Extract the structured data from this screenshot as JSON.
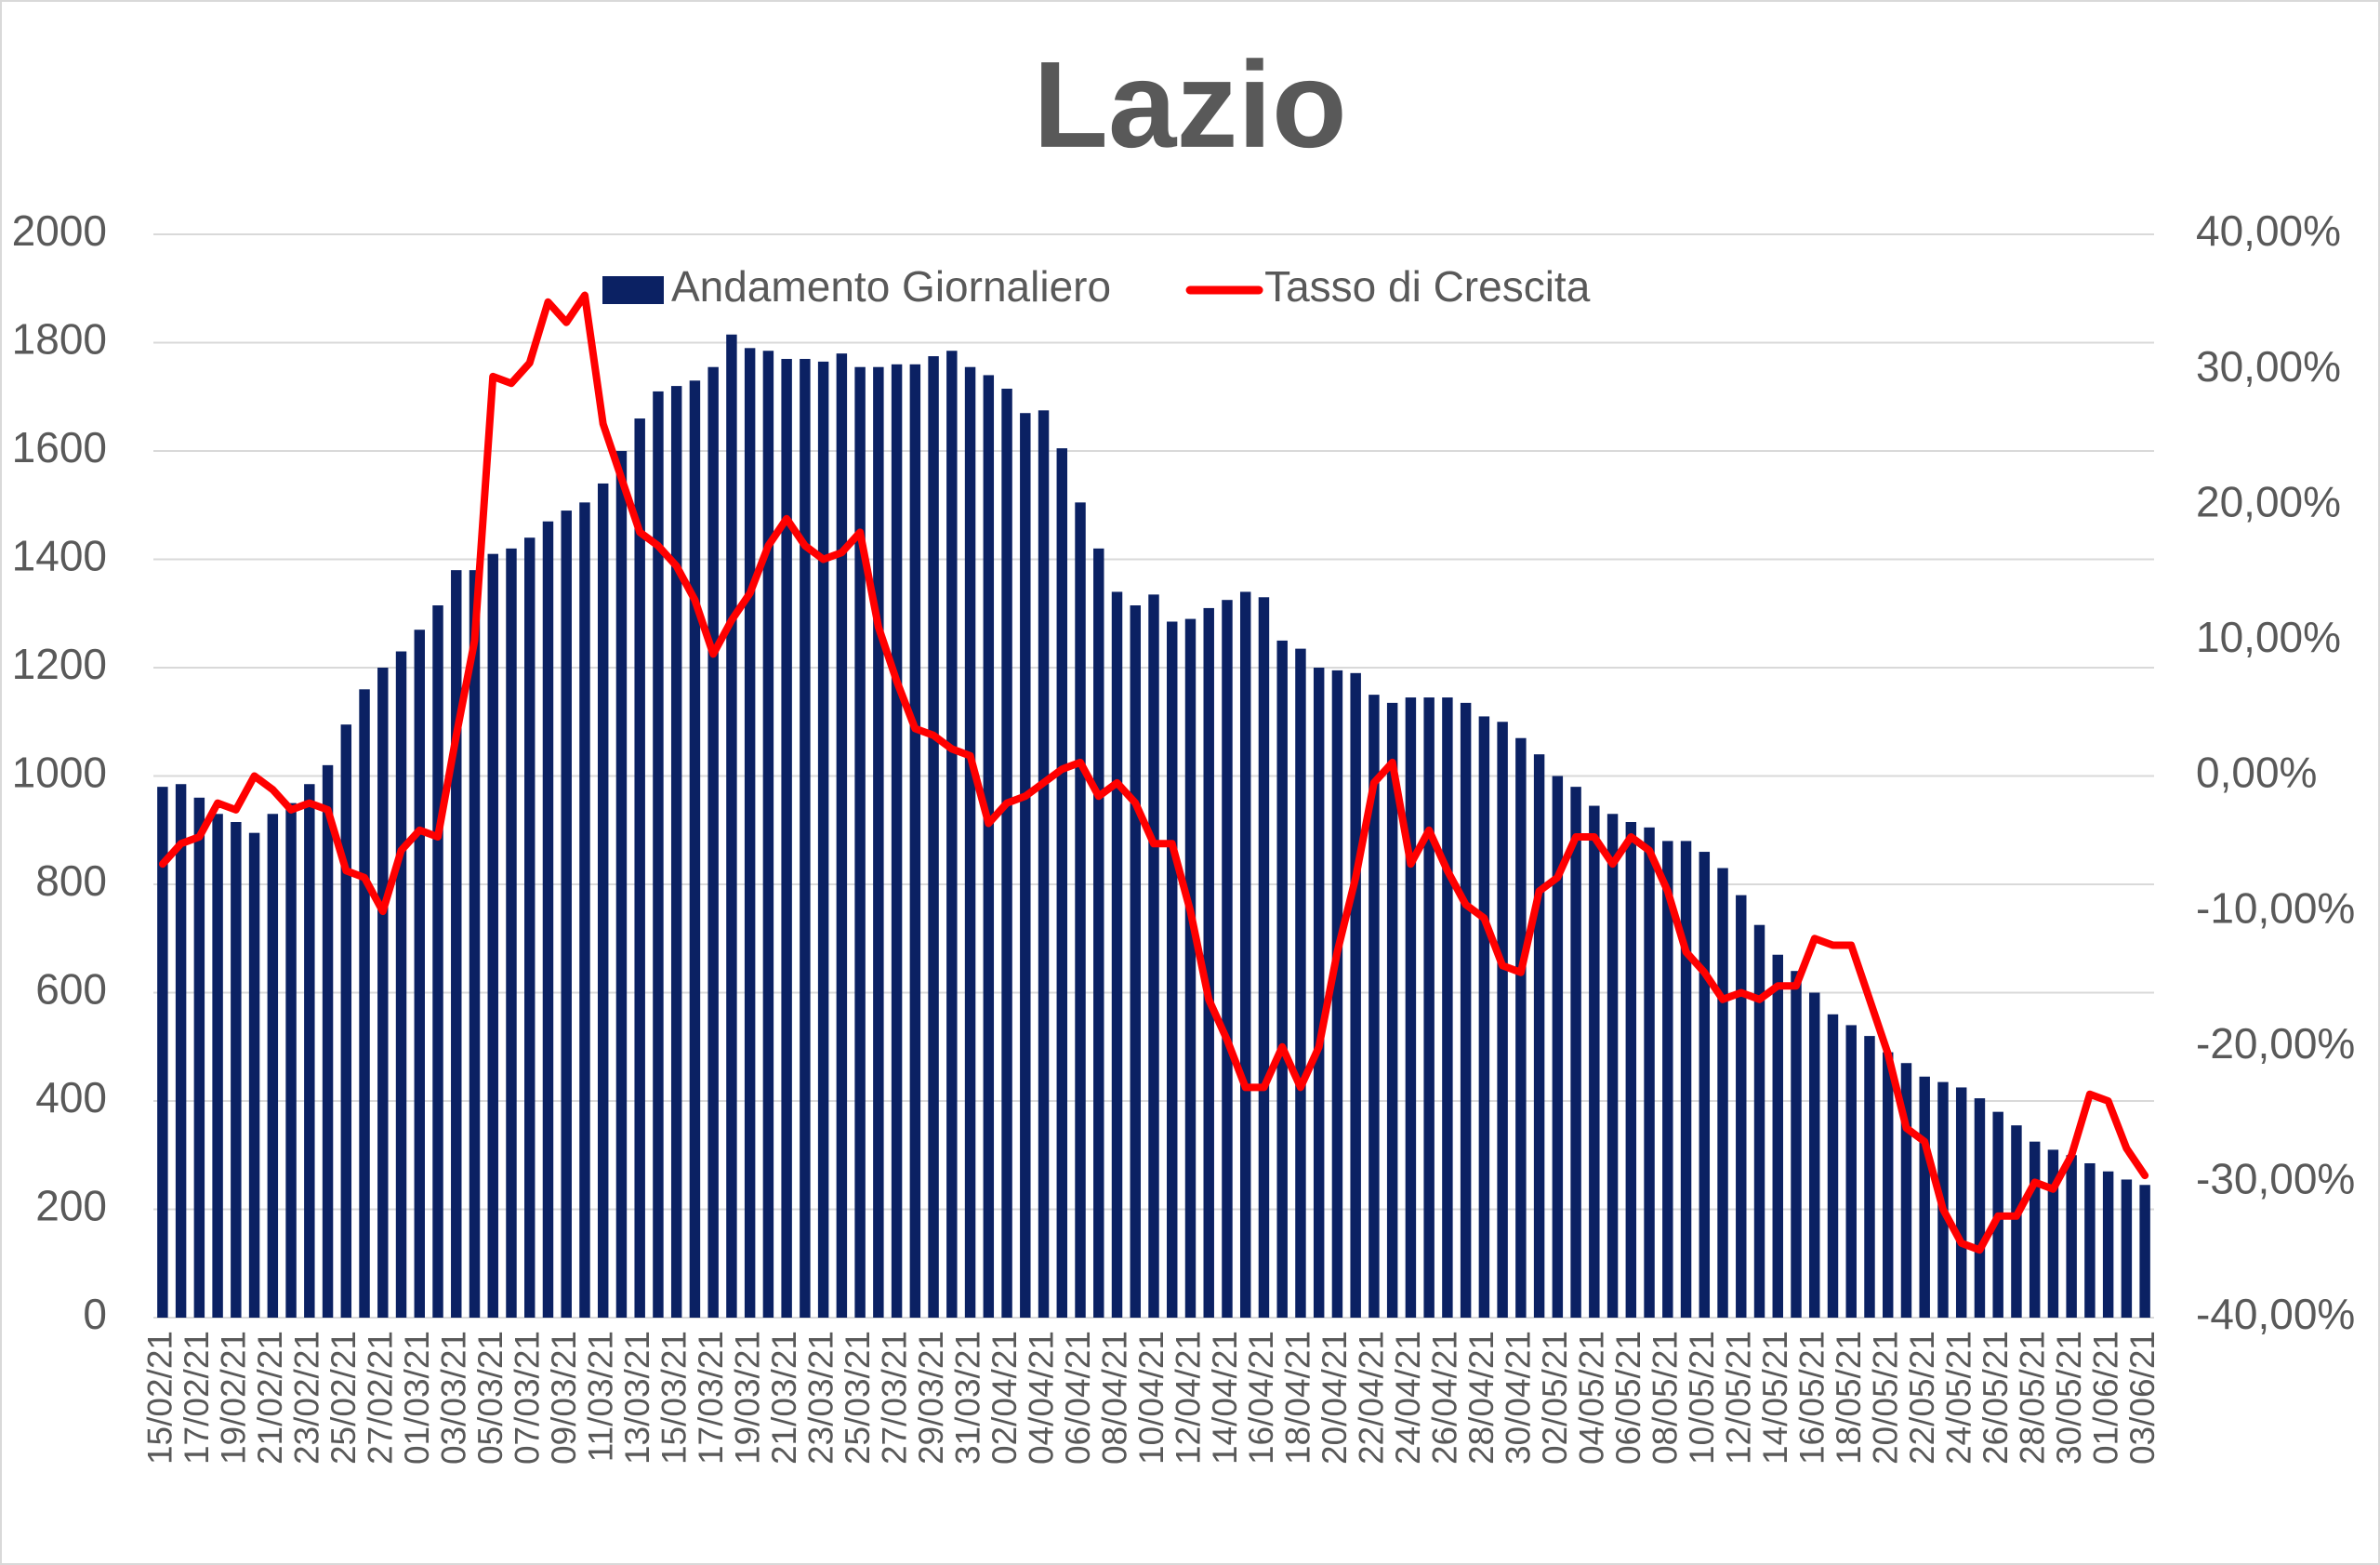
{
  "chart_data": {
    "type": "bar_line",
    "title": "Lazio",
    "categories": [
      "15/02/21",
      null,
      "17/02/21",
      null,
      "19/02/21",
      null,
      "21/02/21",
      null,
      "23/02/21",
      null,
      "25/02/21",
      null,
      "27/02/21",
      null,
      "01/03/21",
      null,
      "03/03/21",
      null,
      "05/03/21",
      null,
      "07/03/21",
      null,
      "09/03/21",
      null,
      "11/03/21",
      null,
      "13/03/21",
      null,
      "15/03/21",
      null,
      "17/03/21",
      null,
      "19/03/21",
      null,
      "21/03/21",
      null,
      "23/03/21",
      null,
      "25/03/21",
      null,
      "27/03/21",
      null,
      "29/03/21",
      null,
      "31/03/21",
      null,
      "02/04/21",
      null,
      "04/04/21",
      null,
      "06/04/21",
      null,
      "08/04/21",
      null,
      "10/04/21",
      null,
      "12/04/21",
      null,
      "14/04/21",
      null,
      "16/04/21",
      null,
      "18/04/21",
      null,
      "20/04/21",
      null,
      "22/04/21",
      null,
      "24/04/21",
      null,
      "26/04/21",
      null,
      "28/04/21",
      null,
      "30/04/21",
      null,
      "02/05/21",
      null,
      "04/05/21",
      null,
      "06/05/21",
      null,
      "08/05/21",
      null,
      "10/05/21",
      null,
      "12/05/21",
      null,
      "14/05/21",
      null,
      "16/05/21",
      null,
      "18/05/21",
      null,
      "20/05/21",
      null,
      "22/05/21",
      null,
      "24/05/21",
      null,
      "26/05/21",
      null,
      "28/05/21",
      null,
      "30/05/21",
      null,
      "01/06/21",
      null,
      "03/06/21"
    ],
    "series": [
      {
        "name": "Andamento Giornaliero",
        "type": "bar",
        "color": "#0b2163",
        "values": [
          980,
          985,
          960,
          930,
          915,
          895,
          930,
          950,
          985,
          1020,
          1095,
          1160,
          1200,
          1230,
          1270,
          1315,
          1380,
          1380,
          1410,
          1420,
          1440,
          1470,
          1490,
          1505,
          1540,
          1600,
          1660,
          1710,
          1720,
          1730,
          1755,
          1815,
          1790,
          1785,
          1770,
          1770,
          1765,
          1780,
          1755,
          1755,
          1760,
          1760,
          1775,
          1785,
          1755,
          1740,
          1715,
          1670,
          1675,
          1605,
          1505,
          1420,
          1340,
          1315,
          1335,
          1285,
          1290,
          1310,
          1325,
          1340,
          1330,
          1250,
          1235,
          1200,
          1195,
          1190,
          1150,
          1135,
          1145,
          1145,
          1145,
          1135,
          1110,
          1100,
          1070,
          1040,
          1000,
          980,
          945,
          930,
          915,
          905,
          880,
          880,
          860,
          830,
          780,
          725,
          670,
          640,
          600,
          560,
          540,
          520,
          490,
          470,
          445,
          435,
          425,
          405,
          380,
          355,
          325,
          310,
          300,
          285,
          270,
          255,
          245
        ]
      },
      {
        "name": "Tasso di Crescita",
        "type": "line",
        "axis": "y2",
        "color": "#ff0000",
        "values": [
          -6.5,
          -5,
          -4.5,
          -2,
          -2.5,
          0,
          -1,
          -2.5,
          -2,
          -2.5,
          -7,
          -7.5,
          -10,
          -5.5,
          -4,
          -4.5,
          3,
          10,
          29.5,
          29,
          30.5,
          35,
          33.5,
          35.5,
          26,
          22,
          18,
          17,
          15.5,
          13,
          9,
          11.5,
          13.5,
          17,
          19,
          17,
          16,
          16.5,
          18,
          11,
          7,
          3.5,
          3,
          2,
          1.5,
          -3.5,
          -2,
          -1.5,
          -0.5,
          0.5,
          1,
          -1.5,
          -0.5,
          -2,
          -5,
          -5,
          -10,
          -16.5,
          -19.5,
          -23,
          -23,
          -20,
          -23,
          -20,
          -13,
          -7.5,
          -0.5,
          1,
          -6.5,
          -4,
          -7,
          -9.5,
          -10.5,
          -14,
          -14.5,
          -8.5,
          -7.5,
          -4.5,
          -4.5,
          -6.5,
          -4.5,
          -5.5,
          -8.5,
          -13,
          -14.5,
          -16.5,
          -16,
          -16.5,
          -15.5,
          -15.5,
          -12,
          -12.5,
          -12.5,
          -16.5,
          -20.5,
          -26,
          -27,
          -32,
          -34.5,
          -35,
          -32.5,
          -32.5,
          -30,
          -30.5,
          -28,
          -23.5,
          -24,
          -27.5,
          -29.5
        ]
      }
    ],
    "ylim": [
      0,
      2000
    ],
    "yticks": [
      0,
      200,
      400,
      600,
      800,
      1000,
      1200,
      1400,
      1600,
      1800,
      2000
    ],
    "y2lim": [
      -40,
      40
    ],
    "y2ticks": [
      {
        "value": -40,
        "label": "-40,00%"
      },
      {
        "value": -30,
        "label": "-30,00%"
      },
      {
        "value": -20,
        "label": "-20,00%"
      },
      {
        "value": -10,
        "label": "-10,00%"
      },
      {
        "value": 0,
        "label": "0,00%"
      },
      {
        "value": 10,
        "label": "10,00%"
      },
      {
        "value": 20,
        "label": "20,00%"
      },
      {
        "value": 30,
        "label": "30,00%"
      },
      {
        "value": 40,
        "label": "40,00%"
      }
    ],
    "grid": true,
    "legend": "top"
  }
}
